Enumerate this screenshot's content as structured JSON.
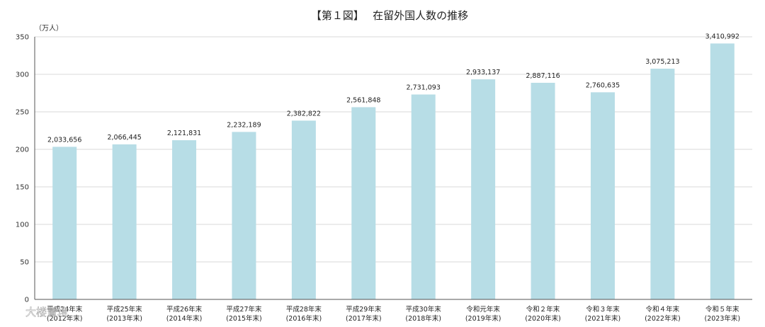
{
  "chart_data": {
    "type": "bar",
    "title": "【第１図】　 在留外国人数の推移",
    "ylabel": "（万人）",
    "xlabel": "",
    "ylim": [
      0,
      350
    ],
    "yticks": [
      0,
      50,
      100,
      150,
      200,
      250,
      300,
      350
    ],
    "grid": true,
    "bar_color": "#b7dde6",
    "categories": [
      [
        "平成24年末",
        "(2012年末)"
      ],
      [
        "平成25年末",
        "(2013年末)"
      ],
      [
        "平成26年末",
        "(2014年末)"
      ],
      [
        "平成27年末",
        "(2015年末)"
      ],
      [
        "平成28年末",
        "(2016年末)"
      ],
      [
        "平成29年末",
        "(2017年末)"
      ],
      [
        "平成30年末",
        "(2018年末)"
      ],
      [
        "令和元年末",
        "(2019年末)"
      ],
      [
        "令和２年末",
        "(2020年末)"
      ],
      [
        "令和３年末",
        "(2021年末)"
      ],
      [
        "令和４年末",
        "(2022年末)"
      ],
      [
        "令和５年末",
        "(2023年末)"
      ]
    ],
    "values": [
      203.3656,
      206.6445,
      212.1831,
      223.2189,
      238.2822,
      256.1848,
      273.1093,
      293.3137,
      288.7116,
      276.0635,
      307.5213,
      341.0992
    ],
    "data_labels": [
      "2,033,656",
      "2,066,445",
      "2,121,831",
      "2,232,189",
      "2,382,822",
      "2,561,848",
      "2,731,093",
      "2,933,137",
      "2,887,116",
      "2,760,635",
      "3,075,213",
      "3,410,992"
    ]
  },
  "watermark": "大楼寶境"
}
